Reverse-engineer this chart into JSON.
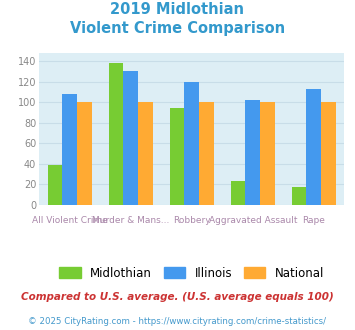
{
  "title_line1": "2019 Midlothian",
  "title_line2": "Violent Crime Comparison",
  "title_color": "#3399cc",
  "top_labels": [
    "",
    "Murder & Mans...",
    "",
    "Aggravated Assault",
    ""
  ],
  "bot_labels": [
    "All Violent Crime",
    "",
    "Robbery",
    "",
    "Rape"
  ],
  "midlothian": [
    39,
    138,
    94,
    23,
    17
  ],
  "illinois": [
    108,
    130,
    120,
    102,
    113
  ],
  "national": [
    100,
    100,
    100,
    100,
    100
  ],
  "midlothian_color": "#77cc33",
  "illinois_color": "#4499ee",
  "national_color": "#ffaa33",
  "ylim": [
    0,
    148
  ],
  "yticks": [
    0,
    20,
    40,
    60,
    80,
    100,
    120,
    140
  ],
  "grid_color": "#c8dde8",
  "plot_bg": "#ddeef5",
  "footnote1": "Compared to U.S. average. (U.S. average equals 100)",
  "footnote2": "© 2025 CityRating.com - https://www.cityrating.com/crime-statistics/",
  "footnote1_color": "#cc3333",
  "footnote2_color": "#4499cc",
  "label_color": "#aa88aa",
  "legend_labels": [
    "Midlothian",
    "Illinois",
    "National"
  ]
}
